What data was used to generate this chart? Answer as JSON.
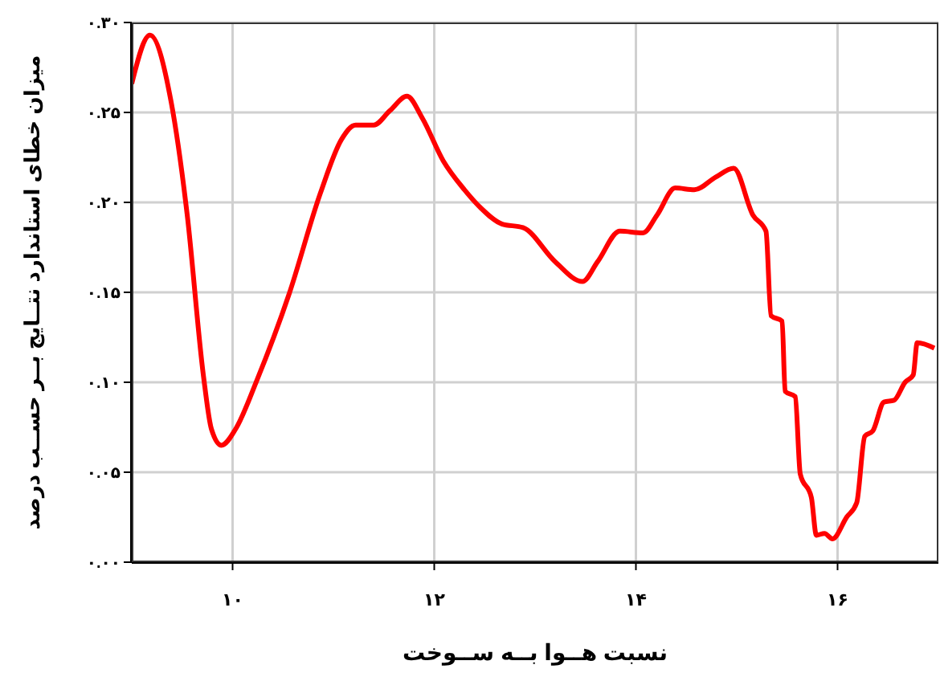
{
  "chart_data": {
    "type": "line",
    "xlabel": "نسبت هــوا بــه ســوخت",
    "ylabel": "میزان خطای استاندارد نتــایج بــر حســب درصد",
    "xlim": [
      9,
      17
    ],
    "xticks": [
      {
        "value": 10,
        "label": "١٠"
      },
      {
        "value": 12,
        "label": "١٢"
      },
      {
        "value": 14,
        "label": "١۴"
      },
      {
        "value": 16,
        "label": "١۶"
      }
    ],
    "ylim": [
      0,
      0.3
    ],
    "yticks": [
      {
        "value": 0,
        "label": "٠.٠٠"
      },
      {
        "value": 0.05,
        "label": "٠.٠۵"
      },
      {
        "value": 0.1,
        "label": "٠.١٠"
      },
      {
        "value": 0.15,
        "label": "٠.١۵"
      },
      {
        "value": 0.2,
        "label": "٠.٢٠"
      },
      {
        "value": 0.25,
        "label": "٠.٢۵"
      },
      {
        "value": 0.3,
        "label": "٠.٣٠"
      }
    ],
    "grid": true,
    "marker": "none",
    "line_style": "solid",
    "x": [
      9.0,
      9.18,
      9.39,
      9.55,
      9.71,
      9.79,
      9.89,
      10.03,
      10.24,
      10.56,
      10.87,
      11.08,
      11.22,
      11.4,
      11.56,
      11.73,
      11.88,
      12.09,
      12.3,
      12.46,
      12.67,
      12.88,
      13.2,
      13.47,
      13.62,
      13.84,
      14.07,
      14.21,
      14.39,
      14.58,
      14.79,
      14.97,
      15.16,
      15.29,
      15.34,
      15.45,
      15.48,
      15.58,
      15.63,
      15.74,
      15.79,
      15.87,
      15.95,
      16.09,
      16.19,
      16.27,
      16.35,
      16.46,
      16.56,
      16.67,
      16.75,
      16.79,
      16.96
    ],
    "series": [
      {
        "color": "#ff0000",
        "values": [
          0.266,
          0.293,
          0.256,
          0.193,
          0.104,
          0.074,
          0.065,
          0.074,
          0.101,
          0.149,
          0.205,
          0.235,
          0.243,
          0.243,
          0.251,
          0.259,
          0.247,
          0.223,
          0.207,
          0.197,
          0.188,
          0.186,
          0.167,
          0.156,
          0.167,
          0.184,
          0.183,
          0.193,
          0.208,
          0.207,
          0.214,
          0.219,
          0.193,
          0.184,
          0.137,
          0.134,
          0.095,
          0.092,
          0.049,
          0.036,
          0.015,
          0.016,
          0.013,
          0.025,
          0.033,
          0.07,
          0.073,
          0.089,
          0.09,
          0.1,
          0.104,
          0.122,
          0.119
        ]
      }
    ]
  }
}
